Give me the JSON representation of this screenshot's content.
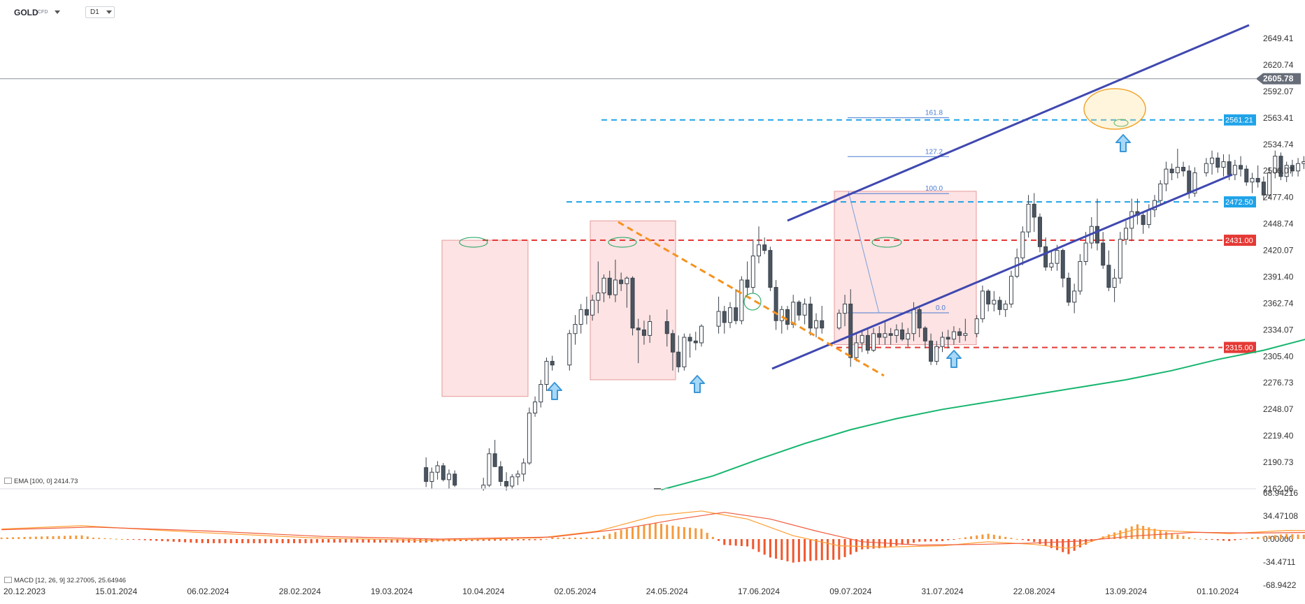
{
  "header": {
    "symbol": "GOLD",
    "symbol_suffix": "CFD",
    "timeframe": "D1"
  },
  "chart_data": {
    "type": "candlestick",
    "y_axis_ticks": [
      "2649.41",
      "2620.74",
      "2592.07",
      "2563.41",
      "2534.74",
      "2506.07",
      "2477.40",
      "2448.74",
      "2420.07",
      "2391.40",
      "2362.74",
      "2334.07",
      "2305.40",
      "2276.73",
      "2248.07",
      "2219.40",
      "2190.73",
      "2162.06"
    ],
    "x_axis_ticks": [
      "20.12.2023",
      "15.01.2024",
      "06.02.2024",
      "28.02.2024",
      "19.03.2024",
      "10.04.2024",
      "02.05.2024",
      "24.05.2024",
      "17.06.2024",
      "09.07.2024",
      "31.07.2024",
      "22.08.2024",
      "13.09.2024",
      "01.10.2024"
    ],
    "current_price": "2605.78",
    "price_levels": [
      {
        "value": "2561.21",
        "color": "#1fa3e8",
        "style": "dashed"
      },
      {
        "value": "2472.50",
        "color": "#1fa3e8",
        "style": "dashed"
      },
      {
        "value": "2431.00",
        "color": "#e53935",
        "style": "dashed"
      },
      {
        "value": "2315.00",
        "color": "#e53935",
        "style": "dashed"
      }
    ],
    "fibonacci_labels": [
      "161.8",
      "127.2",
      "100.0",
      "0.0"
    ],
    "ema": {
      "legend": "EMA [100, 0] 2414.73",
      "color": "#16b56e"
    },
    "macd": {
      "legend": "MACD [12, 26, 9] 32.27005, 25.64946",
      "ticks": [
        "68.94216",
        "34.47108",
        "0.00000",
        "-34.4711",
        "-68.9422"
      ]
    },
    "colors": {
      "up": "#ffffff",
      "down": "#4a5560",
      "channel": "#3f48b0",
      "trend": "#f5921e",
      "zone": "#fde3e3"
    }
  }
}
